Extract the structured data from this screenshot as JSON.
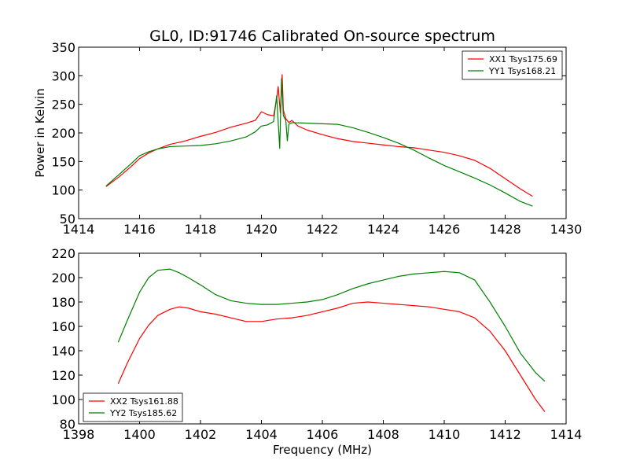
{
  "chart_data": [
    {
      "type": "line",
      "title": "GL0, ID:91746 Calibrated On-source spectrum",
      "xlabel": "",
      "ylabel": "Power in Kelvin",
      "xlim": [
        1414,
        1430
      ],
      "ylim": [
        50,
        350
      ],
      "xticks": [
        1414,
        1416,
        1418,
        1420,
        1422,
        1424,
        1426,
        1428,
        1430
      ],
      "yticks": [
        50,
        100,
        150,
        200,
        250,
        300,
        350
      ],
      "grid": false,
      "legend_position": "top-right",
      "series": [
        {
          "name": "XX1 Tsys175.69",
          "color": "#ff0000",
          "x": [
            1414.9,
            1415.3,
            1415.7,
            1416.0,
            1416.3,
            1416.6,
            1417.0,
            1417.5,
            1418.0,
            1418.5,
            1419.0,
            1419.5,
            1419.8,
            1420.0,
            1420.2,
            1420.4,
            1420.5,
            1420.55,
            1420.62,
            1420.68,
            1420.72,
            1420.8,
            1420.9,
            1421.0,
            1421.2,
            1421.5,
            1422.0,
            1422.5,
            1423.0,
            1423.5,
            1424.0,
            1424.5,
            1425.0,
            1425.5,
            1426.0,
            1426.5,
            1427.0,
            1427.5,
            1428.0,
            1428.5,
            1428.9
          ],
          "y": [
            106,
            122,
            140,
            155,
            165,
            172,
            180,
            186,
            194,
            201,
            210,
            217,
            222,
            237,
            232,
            230,
            260,
            281,
            235,
            302,
            240,
            225,
            218,
            222,
            212,
            205,
            197,
            190,
            185,
            182,
            179,
            176,
            174,
            170,
            166,
            160,
            152,
            138,
            120,
            102,
            89
          ]
        },
        {
          "name": "YY1 Tsys168.21",
          "color": "#008000",
          "x": [
            1414.9,
            1415.3,
            1415.7,
            1416.0,
            1416.3,
            1416.6,
            1417.0,
            1417.5,
            1418.0,
            1418.5,
            1419.0,
            1419.5,
            1419.8,
            1420.0,
            1420.2,
            1420.4,
            1420.5,
            1420.6,
            1420.66,
            1420.72,
            1420.8,
            1420.85,
            1420.9,
            1421.0,
            1421.5,
            1422.0,
            1422.5,
            1423.0,
            1423.5,
            1424.0,
            1424.5,
            1425.0,
            1425.5,
            1426.0,
            1426.5,
            1427.0,
            1427.5,
            1428.0,
            1428.5,
            1428.9
          ],
          "y": [
            107,
            126,
            145,
            160,
            167,
            172,
            176,
            177,
            178,
            181,
            186,
            193,
            202,
            212,
            214,
            220,
            265,
            173,
            295,
            230,
            222,
            186,
            215,
            218,
            217,
            216,
            215,
            209,
            201,
            192,
            182,
            170,
            156,
            143,
            132,
            121,
            109,
            95,
            80,
            72
          ]
        }
      ]
    },
    {
      "type": "line",
      "title": "",
      "xlabel": "Frequency (MHz)",
      "ylabel": "",
      "xlim": [
        1398,
        1414
      ],
      "ylim": [
        80,
        220
      ],
      "xticks": [
        1398,
        1400,
        1402,
        1404,
        1406,
        1408,
        1410,
        1412,
        1414
      ],
      "yticks": [
        80,
        100,
        120,
        140,
        160,
        180,
        200,
        220
      ],
      "grid": false,
      "legend_position": "bottom-left",
      "series": [
        {
          "name": "XX2 Tsys161.88",
          "color": "#ff0000",
          "x": [
            1399.3,
            1399.6,
            1400.0,
            1400.3,
            1400.6,
            1401.0,
            1401.3,
            1401.6,
            1402.0,
            1402.5,
            1403.0,
            1403.5,
            1404.0,
            1404.5,
            1405.0,
            1405.5,
            1406.0,
            1406.5,
            1407.0,
            1407.5,
            1408.0,
            1408.5,
            1409.0,
            1409.5,
            1410.0,
            1410.5,
            1411.0,
            1411.5,
            1412.0,
            1412.5,
            1413.0,
            1413.3
          ],
          "y": [
            113,
            130,
            150,
            161,
            169,
            174,
            176,
            175,
            172,
            170,
            167,
            164,
            164,
            166,
            167,
            169,
            172,
            175,
            179,
            180,
            179,
            178,
            177,
            176,
            174,
            172,
            167,
            156,
            140,
            120,
            100,
            90
          ]
        },
        {
          "name": "YY2 Tsys185.62",
          "color": "#008000",
          "x": [
            1399.3,
            1399.6,
            1400.0,
            1400.3,
            1400.6,
            1401.0,
            1401.3,
            1401.6,
            1402.0,
            1402.5,
            1403.0,
            1403.5,
            1404.0,
            1404.5,
            1405.0,
            1405.5,
            1406.0,
            1406.5,
            1407.0,
            1407.5,
            1408.0,
            1408.5,
            1409.0,
            1409.5,
            1410.0,
            1410.5,
            1411.0,
            1411.5,
            1412.0,
            1412.5,
            1413.0,
            1413.3
          ],
          "y": [
            147,
            165,
            188,
            200,
            206,
            207,
            204,
            200,
            194,
            186,
            181,
            179,
            178,
            178,
            179,
            180,
            182,
            186,
            191,
            195,
            198,
            201,
            203,
            204,
            205,
            204,
            198,
            180,
            160,
            138,
            122,
            115
          ]
        }
      ]
    }
  ]
}
